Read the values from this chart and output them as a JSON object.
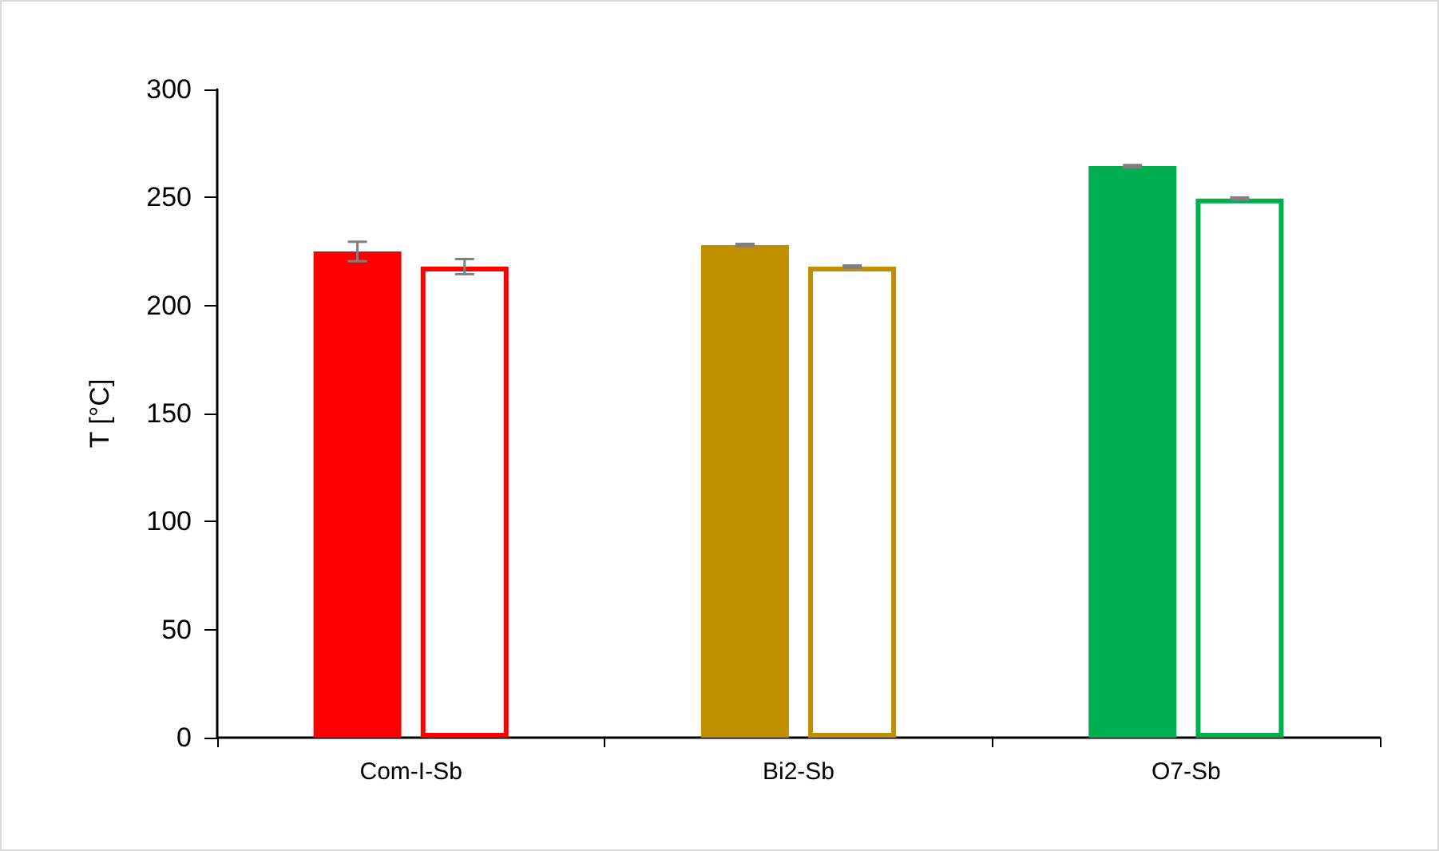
{
  "chart_data": {
    "type": "bar",
    "ylabel": "T [°C]",
    "categories": [
      "Com-I-Sb",
      "Bi2-Sb",
      "O7-Sb"
    ],
    "series": [
      {
        "colors": [
          "#ff0000",
          "#bf8f00",
          "#00b050"
        ],
        "values": [
          225,
          228,
          264.5
        ],
        "errors": [
          4.5,
          0.5,
          0.5
        ]
      },
      {
        "colors": [
          "#ff0000",
          "#bf8f00",
          "#00b050"
        ],
        "values": [
          218,
          218,
          249.5
        ],
        "errors": [
          3.5,
          0.5,
          0.5
        ]
      }
    ],
    "ylim": [
      0,
      300
    ],
    "yticks": [
      0,
      50,
      100,
      150,
      200,
      250,
      300
    ]
  }
}
